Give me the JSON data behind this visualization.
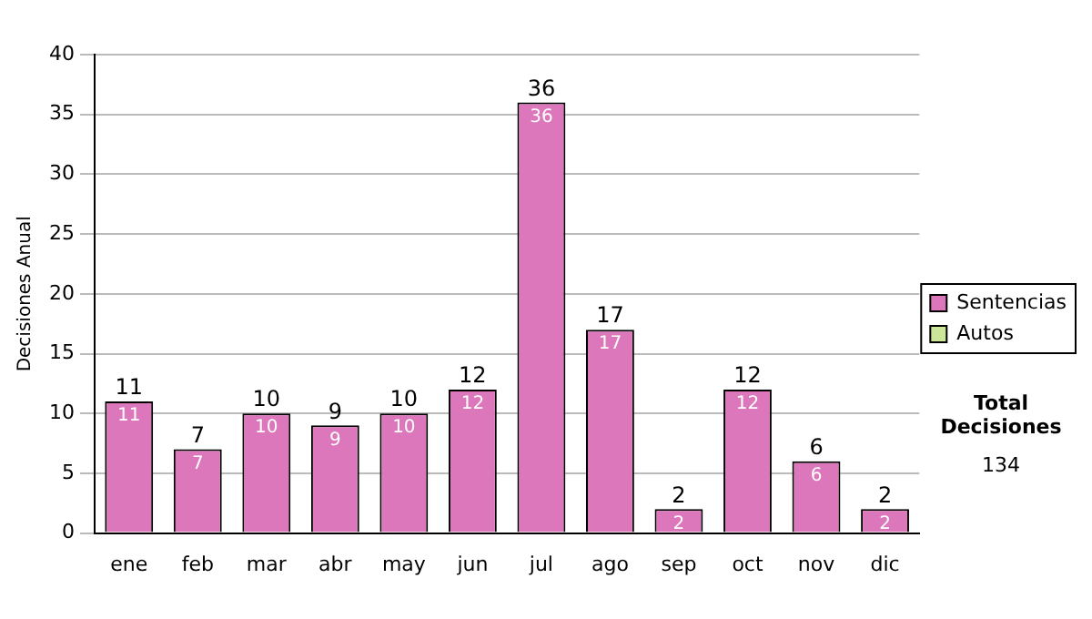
{
  "chart_data": {
    "type": "bar",
    "ylabel": "Decisiones Anual",
    "categories": [
      "ene",
      "feb",
      "mar",
      "abr",
      "may",
      "jun",
      "jul",
      "ago",
      "sep",
      "oct",
      "nov",
      "dic"
    ],
    "series": [
      {
        "name": "Sentencias",
        "color": "#dd77bb",
        "values": [
          11,
          7,
          10,
          9,
          10,
          12,
          36,
          17,
          2,
          12,
          6,
          2
        ],
        "value_labels": [
          "11",
          "7",
          "10",
          "9",
          "10",
          "12",
          "36",
          "17",
          "2",
          "12",
          "6",
          "2"
        ]
      },
      {
        "name": "Autos",
        "color": "#cce699",
        "values": [
          0,
          0,
          0,
          0,
          0,
          0,
          0,
          0,
          0,
          0,
          0,
          0
        ]
      }
    ],
    "stacked": true,
    "totals": [
      "11",
      "7",
      "10",
      "9",
      "10",
      "12",
      "36",
      "17",
      "2",
      "12",
      "6",
      "2"
    ],
    "ylim": [
      0,
      40
    ],
    "yticks": [
      0,
      5,
      10,
      15,
      20,
      25,
      30,
      35,
      40
    ],
    "grid": "y",
    "legend": "right",
    "annotations": [
      "Total Decisiones",
      "134"
    ]
  }
}
